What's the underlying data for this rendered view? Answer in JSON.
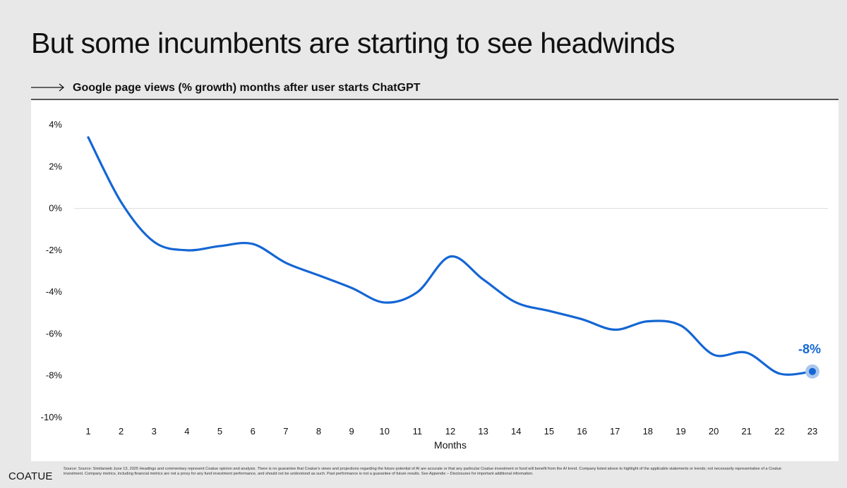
{
  "title": "But some incumbents are starting to see headwinds",
  "subtitle": "Google page views (% growth) months after user starts ChatGPT",
  "colors": {
    "line": "#1466d4",
    "highlight": "#a9c6ee",
    "background": "#e8e8e8",
    "panel": "#ffffff",
    "zero_line": "#dddddd",
    "text": "#111111"
  },
  "chart_data": {
    "type": "line",
    "title": "",
    "xlabel": "Months",
    "ylabel": "",
    "x": [
      1,
      2,
      3,
      4,
      5,
      6,
      7,
      8,
      9,
      10,
      11,
      12,
      13,
      14,
      15,
      16,
      17,
      18,
      19,
      20,
      21,
      22,
      23
    ],
    "series": [
      {
        "values": [
          3.4,
          0.3,
          -1.6,
          -2.0,
          -1.8,
          -1.7,
          -2.6,
          -3.2,
          -3.8,
          -4.5,
          -4.0,
          -2.3,
          -3.4,
          -4.5,
          -4.9,
          -5.3,
          -5.8,
          -5.4,
          -5.6,
          -7.0,
          -6.9,
          -7.9,
          -7.8
        ]
      }
    ],
    "yticks": [
      4,
      2,
      0,
      -2,
      -4,
      -6,
      -8,
      -10
    ],
    "ytick_labels": [
      "4%",
      "2%",
      "0%",
      "-2%",
      "-4%",
      "-6%",
      "-8%",
      "-10%"
    ],
    "ylim": [
      -10,
      4
    ],
    "xlim": [
      1,
      23
    ],
    "grid": false,
    "zero_line": true,
    "end_label": "-8%"
  },
  "footer": {
    "logo": "COATUE",
    "note": "Source: Source: Similarweb June 13, 2025 Headings and commentary represent Coatue opinion and analysis. There is no guarantee that Coatue's views and projections regarding the future potential of AI are accurate or that any particular Coatue investment or fund will benefit from the AI trend. Company listed above to highlight of the applicable statements or trends; not necessarily representative of a Coatue investment. Company metrics, including financial metrics are not a proxy for any fund investment performance, and should not be understood as such. Past performance is not a guarantee of future results. See Appendix – Disclosures for important additional information."
  }
}
